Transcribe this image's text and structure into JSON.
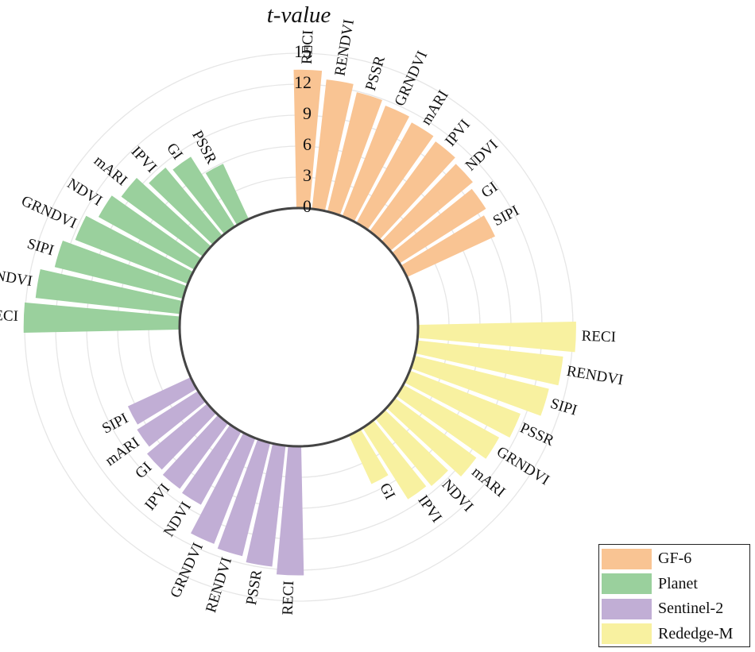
{
  "chart_data": {
    "type": "radial-bar",
    "title": "t-value",
    "radial_axis": {
      "ticks": [
        0,
        3,
        6,
        9,
        12,
        15
      ],
      "range": [
        0,
        16.6
      ]
    },
    "groups": [
      {
        "name": "GF-6",
        "color": "#F9C493",
        "categories": [
          "RECI",
          "RENDVI",
          "PSSR",
          "GRNDVI",
          "mARI",
          "IPVI",
          "NDVI",
          "GI",
          "SIPI"
        ],
        "values": [
          13.4,
          12.6,
          11.9,
          11.5,
          11.1,
          10.8,
          10.4,
          9.9,
          9.4
        ]
      },
      {
        "name": "Rededge-M",
        "color": "#F8F1A0",
        "categories": [
          "RECI",
          "RENDVI",
          "SIPI",
          "PSSR",
          "GRNDVI",
          "mARI",
          "NDVI",
          "IPVI",
          "GI"
        ],
        "values": [
          15.3,
          14.2,
          13.4,
          11.5,
          10.6,
          9.8,
          8.5,
          8.2,
          5.2
        ]
      },
      {
        "name": "Sentinel-2",
        "color": "#C1AED5",
        "categories": [
          "RECI",
          "PSSR",
          "RENDVI",
          "GRNDVI",
          "NDVI",
          "IPVI",
          "GI",
          "mARI",
          "SIPI"
        ],
        "values": [
          12.5,
          11.8,
          11.3,
          11.0,
          8.1,
          7.9,
          7.6,
          7.0,
          6.7
        ]
      },
      {
        "name": "Planet",
        "color": "#9AD09D",
        "categories": [
          "RECI",
          "RENDVI",
          "SIPI",
          "GRNDVI",
          "NDVI",
          "mARI",
          "IPVI",
          "GI",
          "PSSR"
        ],
        "values": [
          15.1,
          14.1,
          12.8,
          11.7,
          10.6,
          9.8,
          8.6,
          8.0,
          5.9
        ]
      }
    ],
    "legend": {
      "position": "bottom-right",
      "entries": [
        {
          "label": "GF-6",
          "color": "#F9C493"
        },
        {
          "label": "Planet",
          "color": "#9AD09D"
        },
        {
          "label": "Sentinel-2",
          "color": "#C1AED5"
        },
        {
          "label": "Rededge-M",
          "color": "#F8F1A0"
        }
      ]
    }
  }
}
